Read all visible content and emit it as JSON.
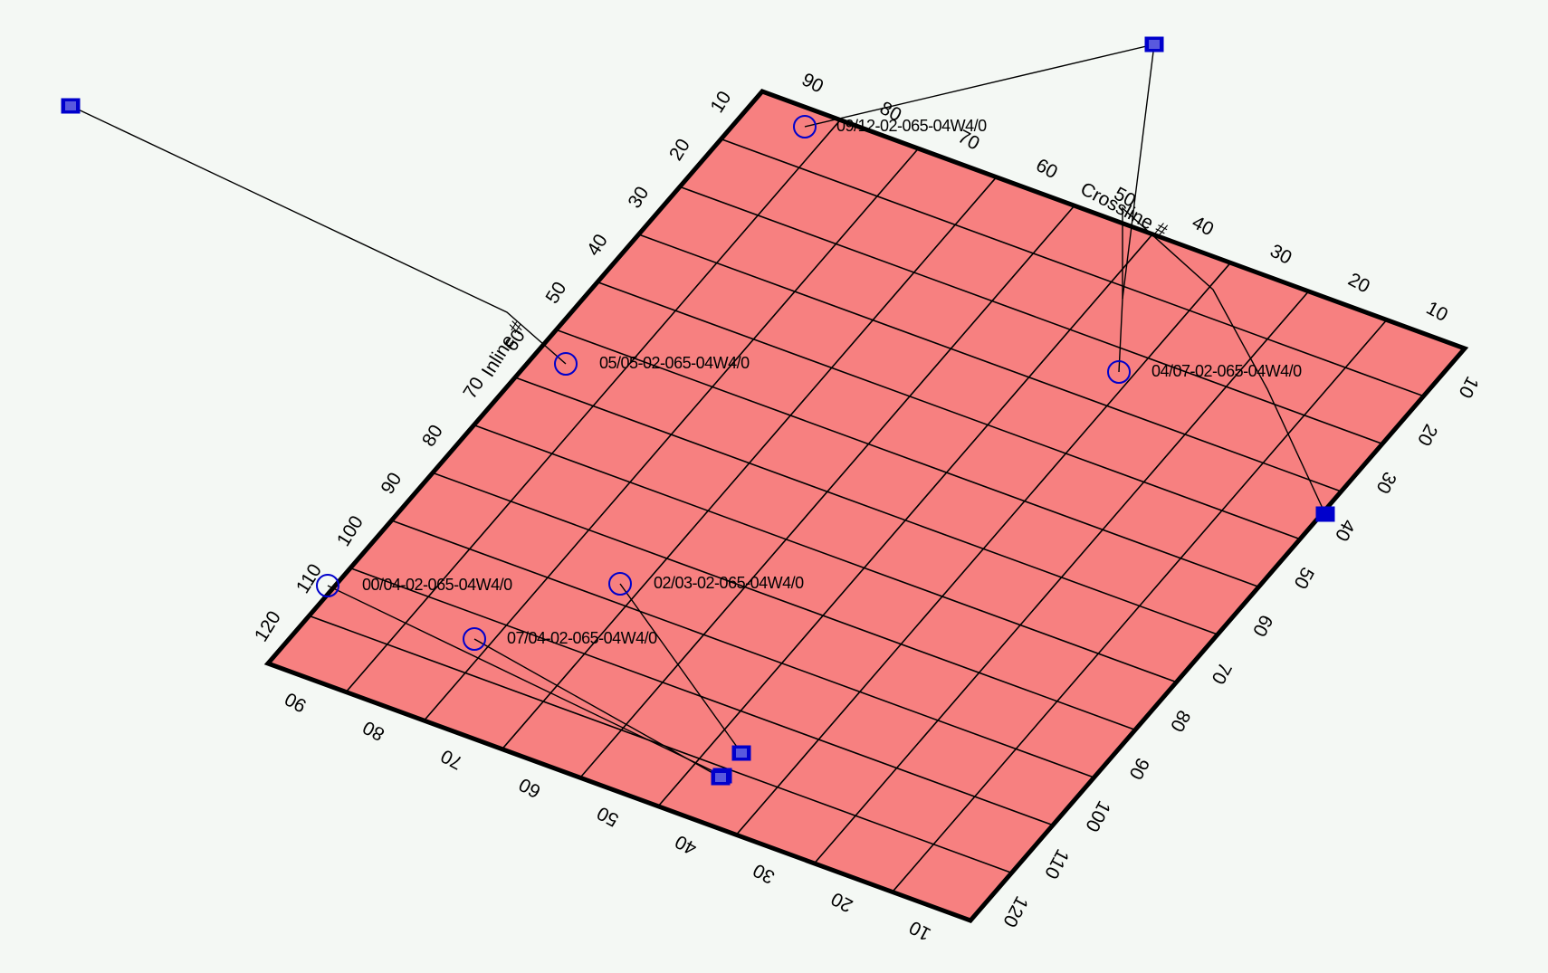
{
  "colors": {
    "background": "#f4f8f4",
    "plane_fill": "#f78080",
    "plane_border": "#000000",
    "grid": "#000000",
    "marker": "#0000cc",
    "trajectory": "#000000"
  },
  "axes": {
    "inline_title": "Inline #",
    "crossline_title": "Crossline #",
    "top_left_edge_ticks": [
      "10",
      "20",
      "30",
      "40",
      "50",
      "60",
      "70",
      "80",
      "90",
      "100",
      "110",
      "120"
    ],
    "top_right_edge_ticks": [
      "90",
      "80",
      "70",
      "60",
      "50",
      "40",
      "30",
      "20",
      "10"
    ],
    "right_edge_ticks": [
      "10",
      "20",
      "30",
      "40",
      "50",
      "60",
      "70",
      "80",
      "90",
      "100",
      "110",
      "120"
    ],
    "bottom_edge_ticks": [
      "90",
      "80",
      "70",
      "60",
      "50",
      "40",
      "30",
      "20",
      "10"
    ]
  },
  "wells": [
    {
      "id": "w1",
      "label": "09/12-02-065-04W4/0"
    },
    {
      "id": "w2",
      "label": "05/05-02-065-04W4/0"
    },
    {
      "id": "w3",
      "label": "04/07-02-065-04W4/0"
    },
    {
      "id": "w4",
      "label": "00/04-02-065-04W4/0"
    },
    {
      "id": "w5",
      "label": "02/03-02-065-04W4/0"
    },
    {
      "id": "w6",
      "label": "07/04-02-065-04W4/0"
    }
  ]
}
